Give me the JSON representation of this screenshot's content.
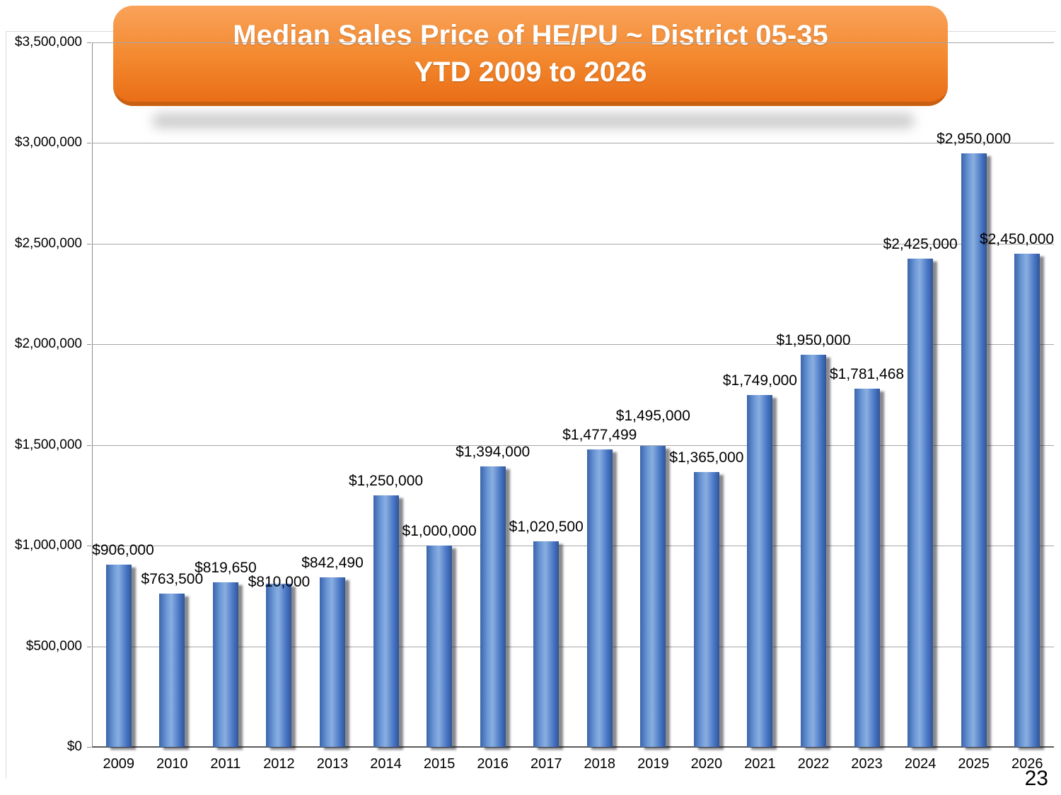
{
  "page": {
    "number": "23"
  },
  "chart_data": {
    "type": "bar",
    "title": "Median Sales Price of HE/PU ~ District 05-35",
    "subtitle": "YTD 2009 to 2026",
    "categories": [
      "2009",
      "2010",
      "2011",
      "2012",
      "2013",
      "2014",
      "2015",
      "2016",
      "2017",
      "2018",
      "2019",
      "2020",
      "2021",
      "2022",
      "2023",
      "2024",
      "2025",
      "2026"
    ],
    "values": [
      906000,
      763500,
      819650,
      810000,
      842490,
      1250000,
      1000000,
      1394000,
      1020500,
      1477499,
      1495000,
      1365000,
      1749000,
      1950000,
      1781468,
      2425000,
      2950000,
      2450000
    ],
    "labels": [
      "$906,000",
      "$763,500",
      "$819,650",
      "$810,000",
      "$842,490",
      "$1,250,000",
      "$1,000,000",
      "$1,394,000",
      "$1,020,500",
      "$1,477,499",
      "$1,495,000",
      "$1,365,000",
      "$1,749,000",
      "$1,950,000",
      "$1,781,468",
      "$2,425,000",
      "$2,950,000",
      "$2,450,000"
    ],
    "xlabel": "",
    "ylabel": "",
    "ylim": [
      0,
      3500000
    ],
    "ytick_step": 500000,
    "ytick_labels": [
      "$0",
      "$500,000",
      "$1,000,000",
      "$1,500,000",
      "$2,000,000",
      "$2,500,000",
      "$3,000,000",
      "$3,500,000"
    ],
    "grid": true,
    "legend": "none",
    "bar_color": "#4472C4",
    "bar_shadow_color": "#1f1f2e",
    "title_bg_top": "#F9A35A",
    "title_bg_bottom": "#E96E17",
    "title_text_color": "#FFFFFF"
  }
}
